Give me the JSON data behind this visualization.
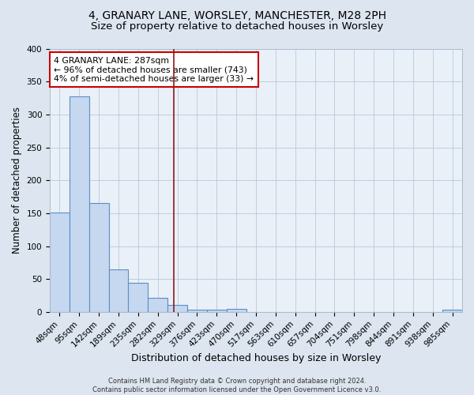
{
  "title1": "4, GRANARY LANE, WORSLEY, MANCHESTER, M28 2PH",
  "title2": "Size of property relative to detached houses in Worsley",
  "xlabel": "Distribution of detached houses by size in Worsley",
  "ylabel": "Number of detached properties",
  "categories": [
    "48sqm",
    "95sqm",
    "142sqm",
    "189sqm",
    "235sqm",
    "282sqm",
    "329sqm",
    "376sqm",
    "423sqm",
    "470sqm",
    "517sqm",
    "563sqm",
    "610sqm",
    "657sqm",
    "704sqm",
    "751sqm",
    "798sqm",
    "844sqm",
    "891sqm",
    "938sqm",
    "985sqm"
  ],
  "values": [
    151,
    328,
    165,
    65,
    44,
    22,
    11,
    4,
    4,
    5,
    0,
    0,
    0,
    0,
    0,
    0,
    0,
    0,
    0,
    0,
    4
  ],
  "bar_color": "#c5d8f0",
  "bar_edge_color": "#5b8ec4",
  "bar_edge_width": 0.8,
  "vline_x": 5.82,
  "vline_color": "#8b1a1a",
  "annotation_text": "4 GRANARY LANE: 287sqm\n← 96% of detached houses are smaller (743)\n4% of semi-detached houses are larger (33) →",
  "annotation_box_color": "white",
  "annotation_box_edge": "#cc0000",
  "footnote": "Contains HM Land Registry data © Crown copyright and database right 2024.\nContains public sector information licensed under the Open Government Licence v3.0.",
  "bg_color": "#dde5f0",
  "plot_bg_color": "#eaf0f8",
  "ylim": [
    0,
    400
  ],
  "yticks": [
    0,
    50,
    100,
    150,
    200,
    250,
    300,
    350,
    400
  ],
  "title1_fontsize": 10,
  "title2_fontsize": 9.5,
  "xlabel_fontsize": 9,
  "ylabel_fontsize": 8.5,
  "tick_fontsize": 7.5,
  "annotation_fontsize": 7.8,
  "footnote_fontsize": 6.0
}
